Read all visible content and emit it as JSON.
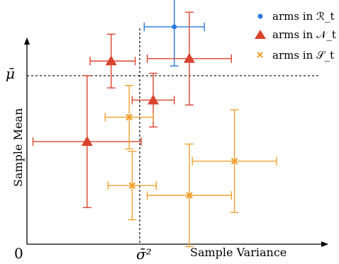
{
  "chart_data": {
    "type": "scatter",
    "title": "",
    "xlabel": "Sample Variance",
    "ylabel": "Sample Mean",
    "origin_label": "0",
    "ref_x_label": "σ̄²",
    "ref_y_label": "μ̄",
    "ref_x": 0.375,
    "ref_y": 0.69,
    "xlim": [
      0,
      1
    ],
    "ylim": [
      0,
      1
    ],
    "grid": false,
    "legend_position": "top-right",
    "series": [
      {
        "name": "arms in ℛ_t",
        "marker": "circle",
        "color": "#2979e0",
        "points": [
          {
            "x": 0.49,
            "y": 0.89,
            "x_err": [
              0.1,
              0.1
            ],
            "y_err": [
              0.16,
              0.16
            ]
          }
        ]
      },
      {
        "name": "arms in 𝒩_t",
        "marker": "triangle",
        "color": "#d9432e",
        "points": [
          {
            "x": 0.28,
            "y": 0.75,
            "x_err": [
              0.07,
              0.08
            ],
            "y_err": [
              0.11,
              0.11
            ]
          },
          {
            "x": 0.54,
            "y": 0.76,
            "x_err": [
              0.14,
              0.14
            ],
            "y_err": [
              0.19,
              0.19
            ]
          },
          {
            "x": 0.42,
            "y": 0.59,
            "x_err": [
              0.07,
              0.07
            ],
            "y_err": [
              0.11,
              0.11
            ]
          },
          {
            "x": 0.2,
            "y": 0.42,
            "x_err": [
              0.18,
              0.18
            ],
            "y_err": [
              0.27,
              0.27
            ]
          }
        ]
      },
      {
        "name": "arms in 𝒮_t",
        "marker": "x",
        "color": "#f0a030",
        "points": [
          {
            "x": 0.34,
            "y": 0.52,
            "x_err": [
              0.08,
              0.08
            ],
            "y_err": [
              0.13,
              0.13
            ]
          },
          {
            "x": 0.35,
            "y": 0.24,
            "x_err": [
              0.08,
              0.08
            ],
            "y_err": [
              0.14,
              0.14
            ]
          },
          {
            "x": 0.54,
            "y": 0.2,
            "x_err": [
              0.14,
              0.14
            ],
            "y_err": [
              0.21,
              0.21
            ]
          },
          {
            "x": 0.69,
            "y": 0.34,
            "x_err": [
              0.14,
              0.14
            ],
            "y_err": [
              0.21,
              0.21
            ]
          }
        ]
      }
    ]
  }
}
